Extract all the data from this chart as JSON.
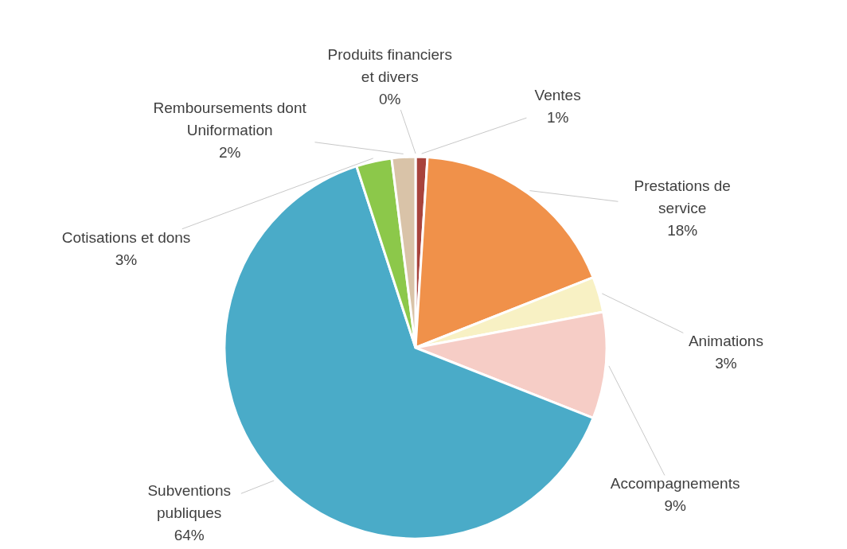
{
  "chart_data": {
    "type": "pie",
    "categories": [
      "Ventes",
      "Prestations de service",
      "Animations",
      "Accompagnements",
      "Subventions publiques",
      "Cotisations et dons",
      "Remboursements dont Uniformation",
      "Produits financiers et divers"
    ],
    "values": [
      1,
      18,
      3,
      9,
      64,
      3,
      2,
      0
    ],
    "value_labels": [
      "1%",
      "18%",
      "3%",
      "9%",
      "64%",
      "3%",
      "2%",
      "0%"
    ],
    "colors": [
      "#a8433c",
      "#f0914a",
      "#f8f1c4",
      "#f6cdc6",
      "#4aabc8",
      "#8cc84a",
      "#d9c3a8",
      "#f0dcc8"
    ],
    "legend": false
  }
}
